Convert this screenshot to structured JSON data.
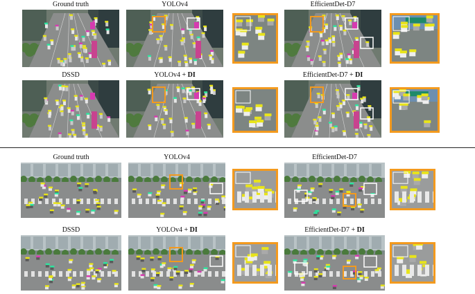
{
  "figure": {
    "colors": {
      "zoom_border": "#f39a1e",
      "zoom_box": "#f39a1e",
      "miss_box": "#ffffff",
      "car_label": "#e8e41a",
      "bus_label": "#d63bb0",
      "person_label": "#2ee6a0"
    },
    "panels": [
      {
        "id": "top",
        "scene": "elevated-road",
        "rows": [
          {
            "cells": [
              {
                "method": "Ground truth",
                "suffix": "",
                "zoom": false
              },
              {
                "method": "YOLOv4",
                "suffix": "",
                "zoom": true
              },
              {
                "method": "EfficientDet-D7",
                "suffix": "",
                "zoom": true
              }
            ]
          },
          {
            "cells": [
              {
                "method": "DSSD",
                "suffix": "",
                "zoom": false
              },
              {
                "method": "YOLOv4 + ",
                "suffix": "DI",
                "zoom": true
              },
              {
                "method": "EfficientDet-D7 + ",
                "suffix": "DI",
                "zoom": true
              }
            ]
          }
        ]
      },
      {
        "id": "bottom",
        "scene": "intersection",
        "rows": [
          {
            "cells": [
              {
                "method": "Ground truth",
                "suffix": "",
                "zoom": false
              },
              {
                "method": "YOLOv4",
                "suffix": "",
                "zoom": true
              },
              {
                "method": "EfficientDet-D7",
                "suffix": "",
                "zoom": true
              }
            ]
          },
          {
            "cells": [
              {
                "method": "DSSD",
                "suffix": "",
                "zoom": false
              },
              {
                "method": "YOLOv4 + ",
                "suffix": "DI",
                "zoom": true
              },
              {
                "method": "EfficientDet-D7 + ",
                "suffix": "DI",
                "zoom": true
              }
            ]
          }
        ]
      }
    ]
  }
}
